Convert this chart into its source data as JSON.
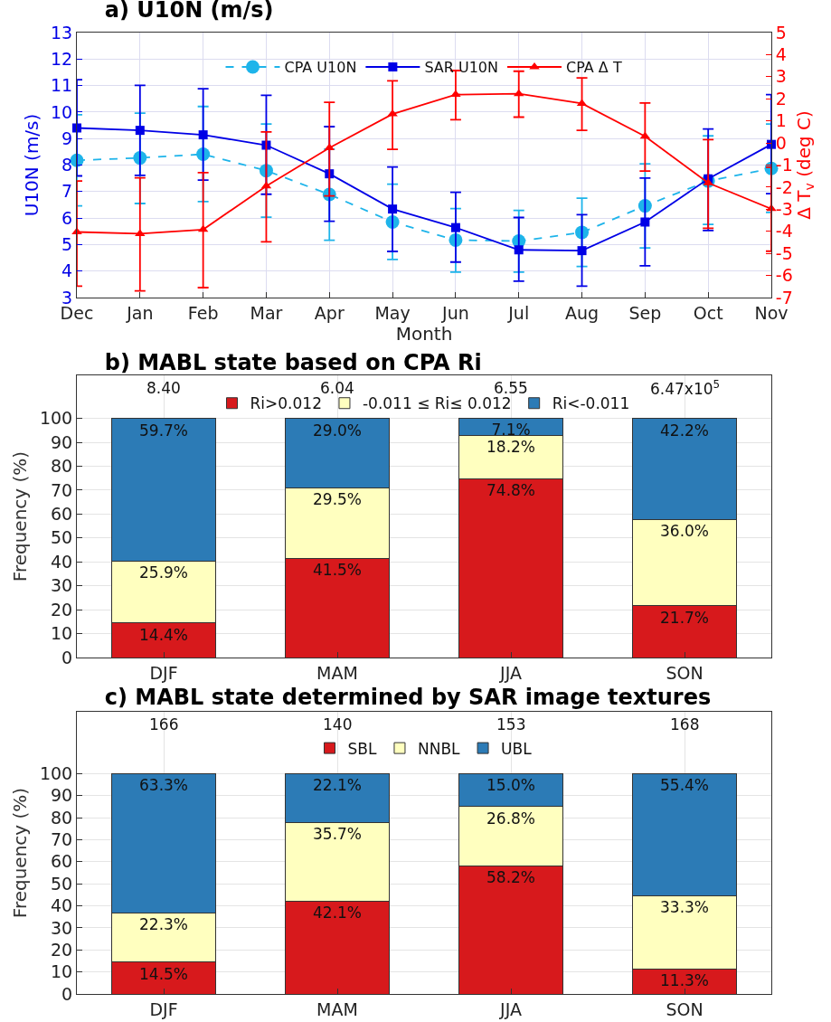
{
  "chart_data": [
    {
      "type": "line",
      "title": "a) U10N (m/s)",
      "xlabel": "Month",
      "ylabel": "U10N (m/s)",
      "y2label": "Δ T$_{v}$ (deg C)",
      "categories": [
        "Dec",
        "Jan",
        "Feb",
        "Mar",
        "Apr",
        "May",
        "Jun",
        "Jul",
        "Aug",
        "Sep",
        "Oct",
        "Nov"
      ],
      "ylim": [
        3,
        13
      ],
      "yticks": [
        3,
        4,
        5,
        6,
        7,
        8,
        9,
        10,
        11,
        12,
        13
      ],
      "y2lim": [
        -7,
        5
      ],
      "y2ticks": [
        -7,
        -6,
        -5,
        -4,
        -3,
        -2,
        -1,
        0,
        1,
        2,
        3,
        4,
        5
      ],
      "grid": true,
      "legend": "top",
      "series": [
        {
          "name": "CPA U10N",
          "color": "#1eb4ea",
          "marker": "circle",
          "line_style": "dashed",
          "values": [
            8.18,
            8.27,
            8.41,
            7.79,
            6.89,
            5.85,
            5.17,
            5.13,
            5.46,
            6.46,
            7.4,
            7.87
          ],
          "errors": [
            [
              6.46,
              9.9
            ],
            [
              6.55,
              9.96
            ],
            [
              6.62,
              10.21
            ],
            [
              6.03,
              9.55
            ],
            [
              5.16,
              8.6
            ],
            [
              4.44,
              7.28
            ],
            [
              3.96,
              6.36
            ],
            [
              3.96,
              6.29
            ],
            [
              4.17,
              6.75
            ],
            [
              4.87,
              8.05
            ],
            [
              5.76,
              9.1
            ],
            [
              6.21,
              9.55
            ]
          ]
        },
        {
          "name": "SAR U10N",
          "color": "#0000e6",
          "marker": "square",
          "line_style": "solid",
          "values": [
            9.4,
            9.31,
            9.14,
            8.75,
            7.67,
            6.34,
            5.64,
            4.8,
            4.77,
            5.85,
            7.48,
            8.78
          ],
          "errors": [
            [
              7.59,
              11.22
            ],
            [
              7.61,
              11.01
            ],
            [
              7.43,
              10.88
            ],
            [
              6.9,
              10.63
            ],
            [
              5.88,
              9.45
            ],
            [
              4.74,
              7.93
            ],
            [
              4.34,
              6.97
            ],
            [
              3.62,
              6.02
            ],
            [
              3.43,
              6.13
            ],
            [
              4.2,
              7.51
            ],
            [
              5.53,
              9.36
            ],
            [
              6.92,
              10.66
            ]
          ]
        },
        {
          "name": "CPA Δ T",
          "color": "#ff0000",
          "marker": "triangle",
          "line_style": "solid",
          "axis": "y2",
          "values": [
            -4.03,
            -4.11,
            -3.92,
            -1.95,
            -0.22,
            1.31,
            2.19,
            2.23,
            1.79,
            0.3,
            -1.81,
            -2.98
          ],
          "errors": [
            [
              -6.48,
              -1.72
            ],
            [
              -6.7,
              -1.58
            ],
            [
              -6.55,
              -1.34
            ],
            [
              -4.48,
              0.5
            ],
            [
              -2.4,
              1.84
            ],
            [
              -0.29,
              2.81
            ],
            [
              1.05,
              3.28
            ],
            [
              1.17,
              3.25
            ],
            [
              0.57,
              2.95
            ],
            [
              -1.27,
              1.81
            ],
            [
              -3.86,
              0.15
            ],
            [
              -4.9,
              -1.1
            ]
          ]
        }
      ]
    },
    {
      "type": "bar",
      "stacked": true,
      "title": "b) MABL state based on CPA Ri",
      "ylabel": "Frequency (%)",
      "categories": [
        "DJF",
        "MAM",
        "JJA",
        "SON"
      ],
      "ylim": [
        0,
        118
      ],
      "yticks": [
        0,
        10,
        20,
        30,
        40,
        50,
        60,
        70,
        80,
        90,
        100
      ],
      "grid": true,
      "legend": "top",
      "annotations": [
        "8.40",
        "6.04",
        "6.55",
        "6.47x10$^{5}$"
      ],
      "series": [
        {
          "name": "Ri>0.012",
          "color": "#d7191c",
          "values": [
            14.4,
            41.5,
            74.8,
            21.7
          ],
          "value_labels": [
            "14.4%",
            "41.5%",
            "74.8%",
            "21.7%"
          ]
        },
        {
          "name": "-0.011 ≤ Ri≤ 0.012",
          "color": "#ffffbf",
          "values": [
            25.9,
            29.5,
            18.2,
            36.0
          ],
          "value_labels": [
            "25.9%",
            "29.5%",
            "18.2%",
            "36.0%"
          ]
        },
        {
          "name": "Ri<-0.011",
          "color": "#2c7bb6",
          "values": [
            59.7,
            29.0,
            7.1,
            42.2
          ],
          "value_labels": [
            "59.7%",
            "29.0%",
            "7.1%",
            "42.2%"
          ]
        }
      ]
    },
    {
      "type": "bar",
      "stacked": true,
      "title": "c) MABL state determined by SAR image textures",
      "ylabel": "Frequency (%)",
      "categories": [
        "DJF",
        "MAM",
        "JJA",
        "SON"
      ],
      "ylim": [
        0,
        128
      ],
      "yticks": [
        0,
        10,
        20,
        30,
        40,
        50,
        60,
        70,
        80,
        90,
        100
      ],
      "grid": true,
      "legend": "top",
      "annotations": [
        "166",
        "140",
        "153",
        "168"
      ],
      "series": [
        {
          "name": "SBL",
          "color": "#d7191c",
          "values": [
            14.5,
            42.1,
            58.2,
            11.3
          ],
          "value_labels": [
            "14.5%",
            "42.1%",
            "58.2%",
            "11.3%"
          ]
        },
        {
          "name": "NNBL",
          "color": "#ffffbf",
          "values": [
            22.3,
            35.7,
            26.8,
            33.3
          ],
          "value_labels": [
            "22.3%",
            "35.7%",
            "26.8%",
            "33.3%"
          ]
        },
        {
          "name": "UBL",
          "color": "#2c7bb6",
          "values": [
            63.3,
            22.1,
            15.0,
            55.4
          ],
          "value_labels": [
            "63.3%",
            "22.1%",
            "15.0%",
            "55.4%"
          ]
        }
      ]
    }
  ]
}
